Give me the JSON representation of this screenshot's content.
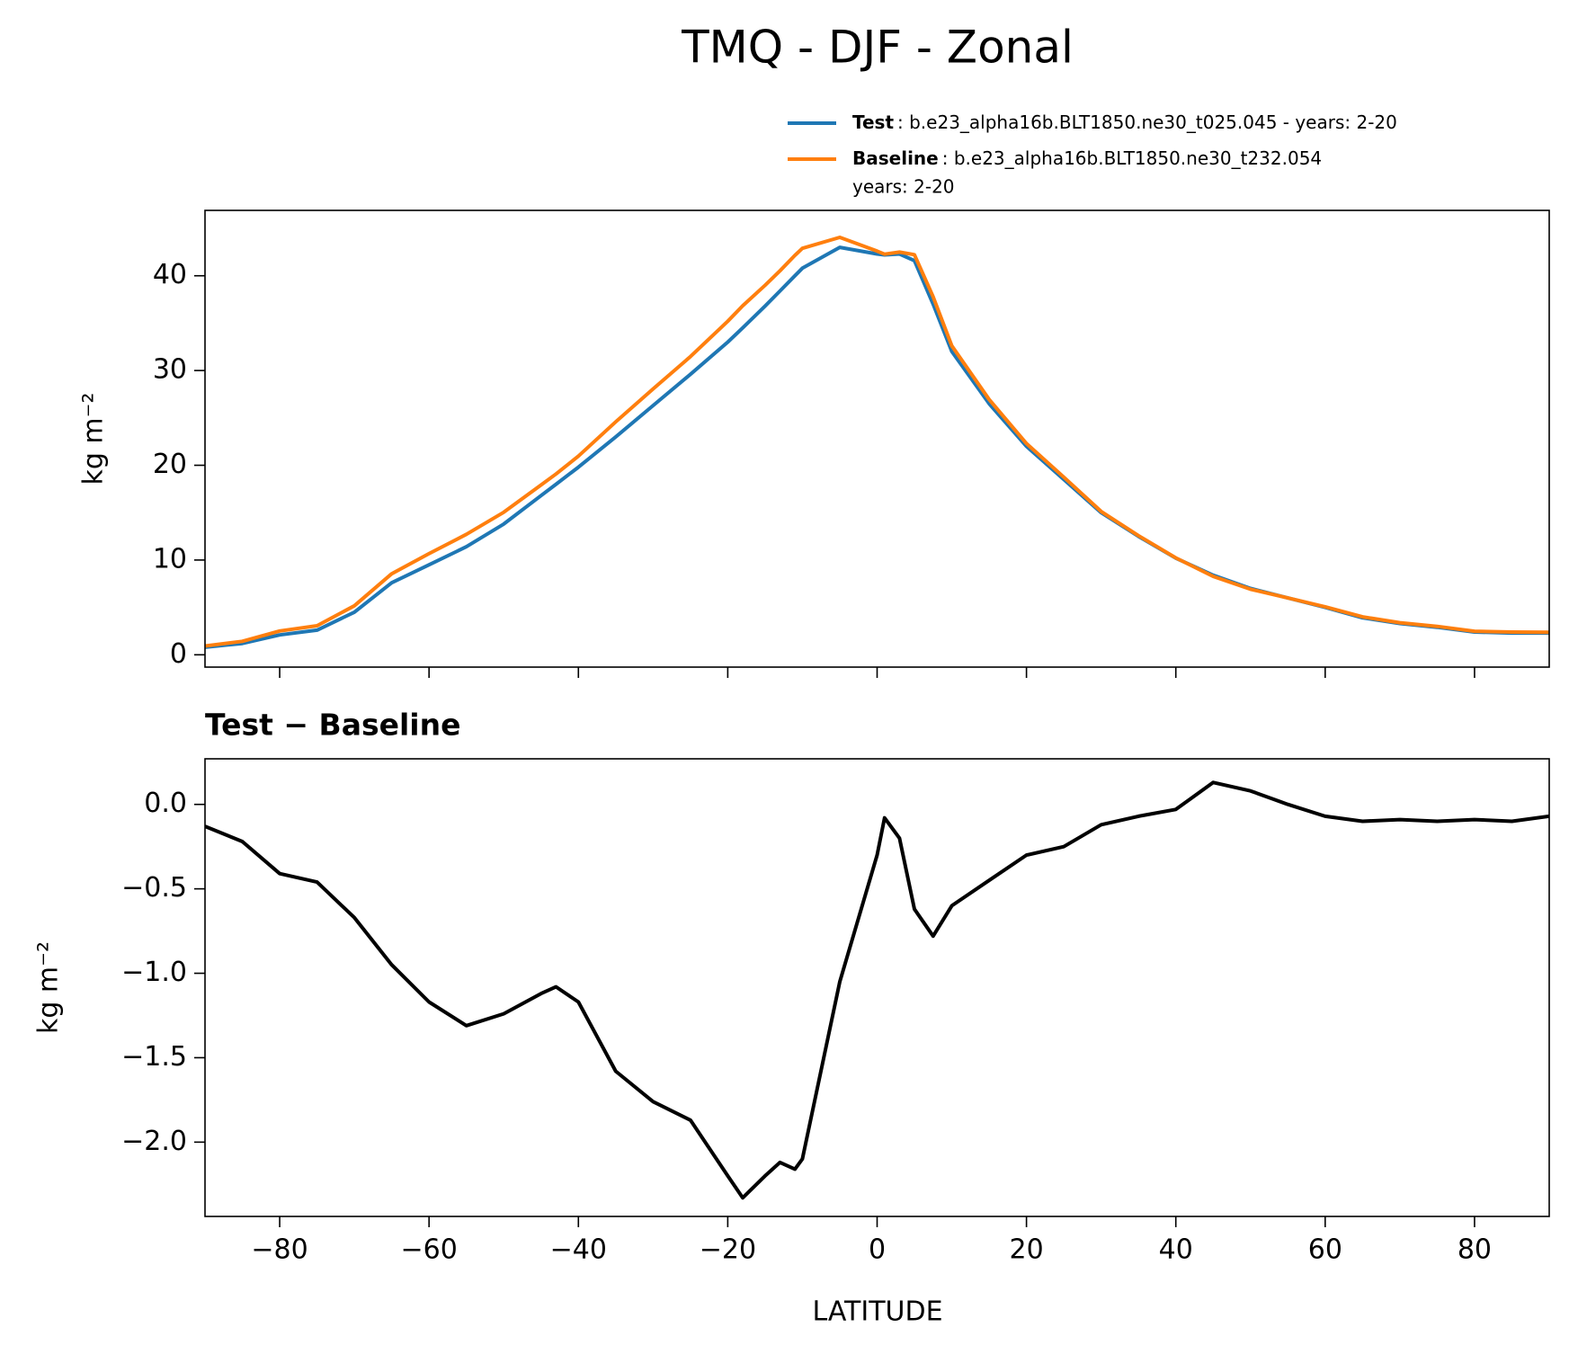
{
  "chart_data": [
    {
      "type": "line",
      "title": "TMQ - DJF - Zonal",
      "ylabel": "kg m⁻²",
      "x": [
        -90,
        -85,
        -80,
        -75,
        -70,
        -65,
        -60,
        -55,
        -50,
        -45,
        -43,
        -40,
        -35,
        -30,
        -25,
        -20,
        -18,
        -15,
        -13,
        -11,
        -10,
        -5,
        0,
        1,
        3,
        5,
        7.5,
        10,
        15,
        20,
        25,
        30,
        35,
        40,
        45,
        50,
        55,
        60,
        65,
        70,
        75,
        80,
        85,
        90
      ],
      "series": [
        {
          "name": "Test",
          "description": [
            ": b.e23_alpha16b.BLT1850.ne30_t025.045 - years: 2-20"
          ],
          "color": "#1f77b4",
          "values": [
            0.8,
            1.2,
            2.1,
            2.6,
            4.5,
            7.6,
            9.5,
            11.4,
            13.8,
            16.8,
            18.0,
            19.8,
            23.0,
            26.3,
            29.6,
            33.0,
            34.5,
            36.8,
            38.4,
            40.0,
            40.8,
            43.0,
            42.3,
            42.2,
            42.3,
            41.6,
            37.0,
            32.0,
            26.5,
            22.0,
            18.5,
            15.0,
            12.5,
            10.2,
            8.4,
            7.0,
            6.0,
            5.0,
            3.9,
            3.3,
            2.9,
            2.4,
            2.3,
            2.3
          ]
        },
        {
          "name": "Baseline",
          "description": [
            ": b.e23_alpha16b.BLT1850.ne30_t232.054",
            "years: 2-20"
          ],
          "color": "#ff7f0e",
          "values": [
            0.93,
            1.42,
            2.51,
            3.06,
            5.17,
            8.55,
            10.67,
            12.71,
            15.04,
            17.92,
            19.08,
            20.97,
            24.58,
            28.06,
            31.47,
            35.2,
            36.83,
            39.0,
            40.52,
            42.16,
            42.9,
            44.05,
            42.6,
            42.28,
            42.5,
            42.22,
            37.78,
            32.6,
            26.95,
            22.3,
            18.75,
            15.12,
            12.57,
            10.23,
            8.27,
            6.92,
            6.0,
            5.07,
            4.0,
            3.39,
            3.0,
            2.49,
            2.4,
            2.37
          ]
        }
      ],
      "xlim": [
        -90,
        90
      ],
      "xticks": [
        -80,
        -60,
        -40,
        -20,
        0,
        20,
        40,
        60,
        80
      ],
      "ylim": [
        -1.3,
        46.9
      ],
      "yticks": [
        0,
        10,
        20,
        30,
        40
      ]
    },
    {
      "type": "line",
      "title": "Test − Baseline",
      "ylabel": "kg m⁻²",
      "xlabel": "LATITUDE",
      "x": [
        -90,
        -85,
        -80,
        -75,
        -70,
        -65,
        -60,
        -55,
        -50,
        -45,
        -43,
        -40,
        -35,
        -30,
        -25,
        -20,
        -18,
        -15,
        -13,
        -11,
        -10,
        -5,
        0,
        1,
        3,
        5,
        7.5,
        10,
        15,
        20,
        25,
        30,
        35,
        40,
        45,
        50,
        55,
        60,
        65,
        70,
        75,
        80,
        85,
        90
      ],
      "series": [
        {
          "color": "#000000",
          "values": [
            -0.13,
            -0.22,
            -0.41,
            -0.46,
            -0.67,
            -0.95,
            -1.17,
            -1.31,
            -1.24,
            -1.12,
            -1.08,
            -1.17,
            -1.58,
            -1.76,
            -1.87,
            -2.2,
            -2.33,
            -2.2,
            -2.12,
            -2.16,
            -2.1,
            -1.05,
            -0.3,
            -0.08,
            -0.2,
            -0.62,
            -0.78,
            -0.6,
            -0.45,
            -0.3,
            -0.25,
            -0.12,
            -0.07,
            -0.03,
            0.13,
            0.08,
            0.0,
            -0.07,
            -0.1,
            -0.09,
            -0.1,
            -0.09,
            -0.1,
            -0.07
          ]
        }
      ],
      "xlim": [
        -90,
        90
      ],
      "xticks": [
        {
          "value": -80,
          "label": "−80"
        },
        {
          "value": -60,
          "label": "−60"
        },
        {
          "value": -40,
          "label": "−40"
        },
        {
          "value": -20,
          "label": "−20"
        },
        0,
        20,
        40,
        60,
        80
      ],
      "ylim": [
        -2.44,
        0.27
      ],
      "yticks": [
        {
          "value": 0,
          "label": "0.0"
        },
        {
          "value": -0.5,
          "label": "−0.5"
        },
        {
          "value": -1,
          "label": "−1.0"
        },
        {
          "value": -1.5,
          "label": "−1.5"
        },
        {
          "value": -2,
          "label": "−2.0"
        }
      ]
    }
  ]
}
